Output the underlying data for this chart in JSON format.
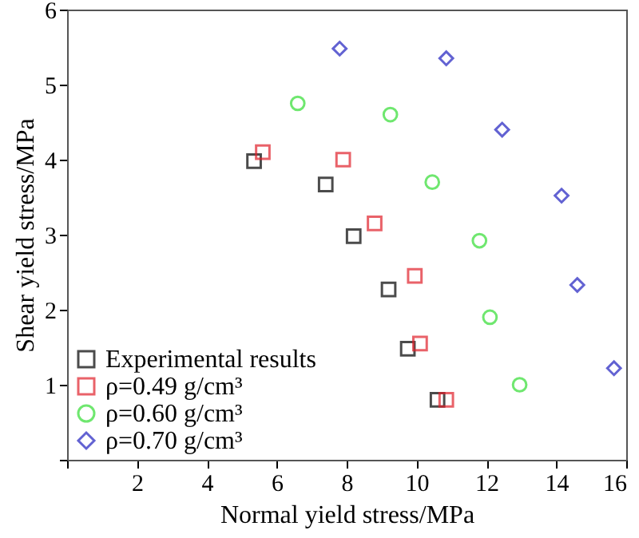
{
  "chart_data": {
    "type": "scatter",
    "xlabel": "Normal yield stress/MPa",
    "ylabel": "Shear yield stress/MPa",
    "xlim": [
      0,
      16
    ],
    "xticks": [
      {
        "value": 0,
        "label": null
      },
      2,
      4,
      6,
      8,
      10,
      12,
      14,
      16
    ],
    "ylim": [
      0,
      6
    ],
    "yticks": [
      {
        "value": 0,
        "label": null
      },
      1,
      2,
      3,
      4,
      5,
      6
    ],
    "grid": false,
    "legend": "bottom left",
    "series": [
      {
        "name": "Experimental results",
        "color": "#000000",
        "marker": "square",
        "x": [
          5.35,
          7.4,
          8.2,
          9.2,
          9.75,
          10.6
        ],
        "values": [
          3.98,
          3.67,
          2.98,
          2.27,
          1.48,
          0.8
        ]
      },
      {
        "name": "ρ=0.49 g/cm³",
        "color": "#e0202a",
        "marker": "square",
        "x": [
          5.6,
          7.9,
          8.8,
          9.95,
          10.1,
          10.85
        ],
        "values": [
          4.1,
          4.0,
          3.15,
          2.45,
          1.55,
          0.8
        ]
      },
      {
        "name": "ρ=0.60 g/cm³",
        "color": "#33dd33",
        "marker": "circle",
        "x": [
          6.6,
          9.25,
          10.45,
          11.8,
          12.1,
          12.95
        ],
        "values": [
          4.75,
          4.6,
          3.7,
          2.92,
          1.9,
          1.0
        ]
      },
      {
        "name": "ρ=0.70 g/cm³",
        "color": "#2020c0",
        "marker": "diamond",
        "x": [
          7.8,
          10.85,
          12.45,
          14.15,
          14.6,
          15.65
        ],
        "values": [
          5.48,
          5.35,
          4.4,
          3.52,
          2.33,
          1.22
        ]
      }
    ]
  }
}
